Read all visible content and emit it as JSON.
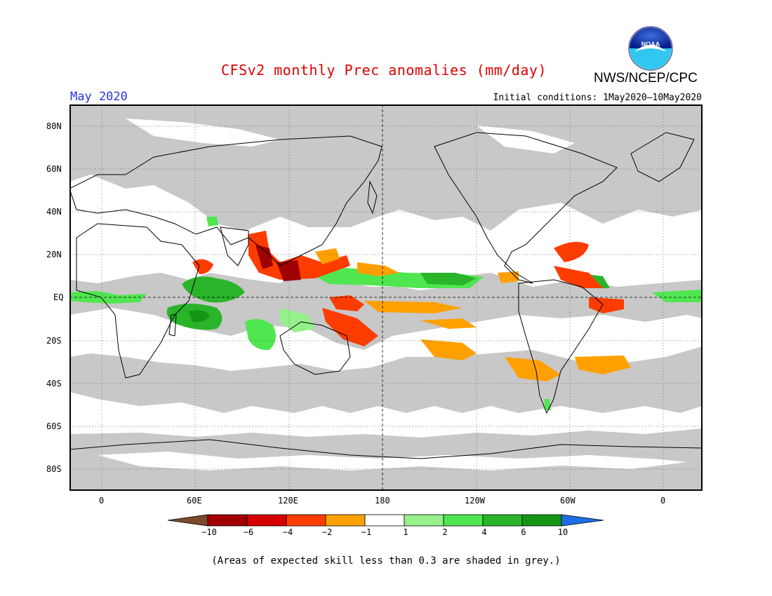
{
  "header": {
    "title": "CFSv2 monthly Prec anomalies (mm/day)",
    "agency": "NWS/NCEP/CPC",
    "logo_icon": "noaa-logo-icon",
    "logo_text": "NOAA",
    "month": "May 2020",
    "initial_conditions": "Initial conditions: 1May2020—10May2020"
  },
  "map": {
    "projection": "equirectangular",
    "center_longitude": 180,
    "background_color": "#c8c8c8",
    "grid": "dotted",
    "lat_labels": [
      "80N",
      "60N",
      "40N",
      "20N",
      "EQ",
      "20S",
      "40S",
      "60S",
      "80S"
    ],
    "lon_labels": [
      "0",
      "60E",
      "120E",
      "180",
      "120W",
      "60W",
      "0"
    ]
  },
  "legend": {
    "colors": [
      "#7a4a2a",
      "#a00000",
      "#d40000",
      "#ff3c00",
      "#ffa000",
      "#ffffff",
      "#96f08c",
      "#50e650",
      "#2ab42a",
      "#149614",
      "#1e6ee6"
    ],
    "labels": [
      "−10",
      "−6",
      "−4",
      "−2",
      "−1",
      "1",
      "2",
      "4",
      "6",
      "10"
    ]
  },
  "footnote": "(Areas of expected skill less than 0.3 are shaded in grey.)"
}
